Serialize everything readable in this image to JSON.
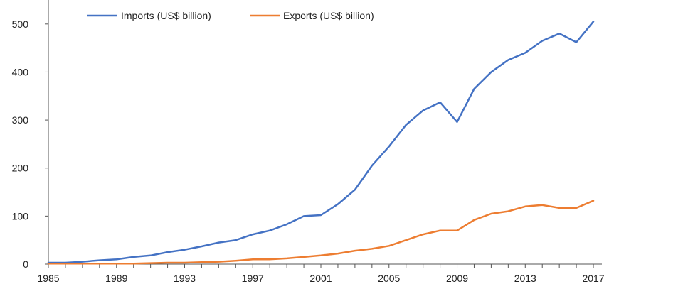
{
  "chart_data": {
    "type": "line",
    "title": "",
    "xlabel": "",
    "ylabel": "",
    "x": [
      1985,
      1986,
      1987,
      1988,
      1989,
      1990,
      1991,
      1992,
      1993,
      1994,
      1995,
      1996,
      1997,
      1998,
      1999,
      2000,
      2001,
      2002,
      2003,
      2004,
      2005,
      2006,
      2007,
      2008,
      2009,
      2010,
      2011,
      2012,
      2013,
      2014,
      2015,
      2016,
      2017
    ],
    "xlim": [
      1985,
      2017.5
    ],
    "ylim": [
      0,
      550
    ],
    "x_ticks": [
      "1985",
      "1989",
      "1993",
      "1997",
      "2001",
      "2005",
      "2009",
      "2013",
      "2017"
    ],
    "y_ticks": [
      "0",
      "100",
      "200",
      "300",
      "400",
      "500"
    ],
    "grid": false,
    "legend_position": "top-left",
    "series": [
      {
        "name": "Imports (US$ billion)",
        "color": "#4472C4",
        "values": [
          3,
          3,
          5,
          8,
          10,
          15,
          18,
          25,
          30,
          37,
          45,
          50,
          62,
          70,
          83,
          100,
          102,
          125,
          155,
          205,
          245,
          290,
          320,
          337,
          296,
          365,
          400,
          425,
          440,
          465,
          480,
          462,
          505
        ]
      },
      {
        "name": "Exports (US$ billion)",
        "color": "#ED7D31",
        "values": [
          1,
          1,
          1,
          1,
          1,
          1,
          2,
          3,
          3,
          4,
          5,
          7,
          10,
          10,
          12,
          15,
          18,
          22,
          28,
          32,
          38,
          50,
          62,
          70,
          70,
          92,
          105,
          110,
          120,
          123,
          117,
          117,
          132
        ]
      }
    ]
  }
}
